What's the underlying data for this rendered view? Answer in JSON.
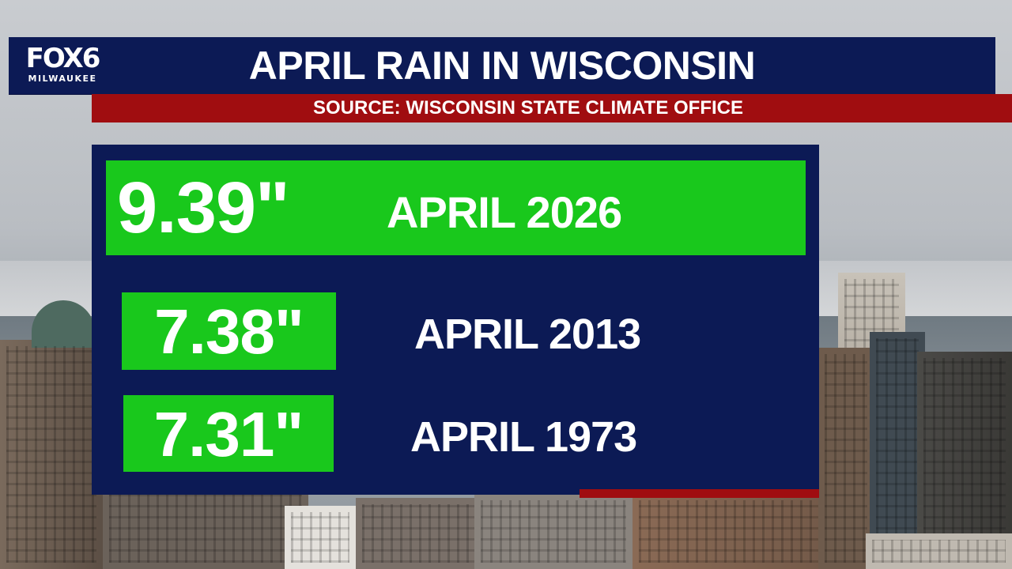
{
  "header": {
    "logo_main": "FOX6",
    "logo_sub": "MILWAUKEE",
    "title": "APRIL RAIN IN WISCONSIN"
  },
  "source": {
    "text": "SOURCE: WISCONSIN STATE CLIMATE OFFICE"
  },
  "records": [
    {
      "value": "9.39\"",
      "label": "APRIL 2026"
    },
    {
      "value": "7.38\"",
      "label": "APRIL 2013"
    },
    {
      "value": "7.31\"",
      "label": "APRIL 1973"
    }
  ],
  "colors": {
    "navy": "#0c1a55",
    "red": "#a00d10",
    "green": "#19c81c",
    "text": "#ffffff"
  }
}
